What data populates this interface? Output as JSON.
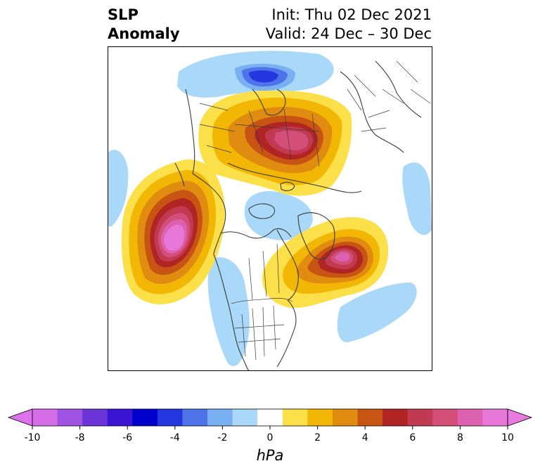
{
  "title": {
    "left_line1": "SLP",
    "left_line2": "Anomaly",
    "right_line1": "Init: Thu 02 Dec 2021",
    "right_line2": "Valid: 24 Dec – 30 Dec"
  },
  "colorbar": {
    "unit_label": "hPa",
    "ticks": [
      "-10",
      "-8",
      "-6",
      "-4",
      "-2",
      "0",
      "2",
      "4",
      "6",
      "8",
      "10"
    ],
    "levels": [
      -10,
      -9,
      -8,
      -7,
      -6,
      -5,
      -4,
      -3,
      -2,
      -1,
      1,
      2,
      3,
      4,
      5,
      6,
      7,
      8,
      9,
      10
    ],
    "colors": [
      "#d56ee6",
      "#9f53e2",
      "#6b35d8",
      "#3a16d4",
      "#0000cc",
      "#2336e0",
      "#4e73e8",
      "#78b0f2",
      "#aad8f8",
      "#ffffff",
      "#fce04a",
      "#f2b705",
      "#e08c10",
      "#c85414",
      "#b02424",
      "#c23a52",
      "#d44e7a",
      "#dc62b0",
      "#e878d8"
    ],
    "extend_low_color": "#dd72ec",
    "extend_high_color": "#e87ae0"
  }
}
